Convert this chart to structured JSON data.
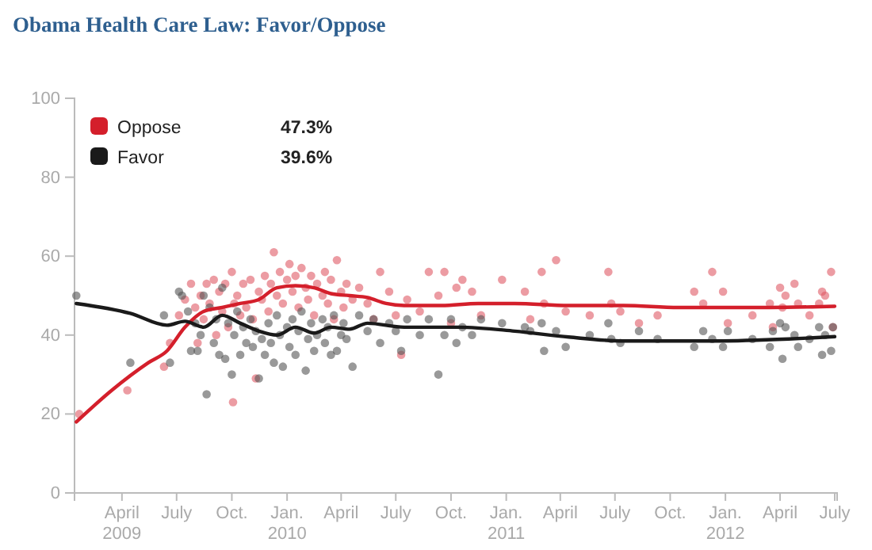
{
  "chart_data": {
    "type": "scatter",
    "marker": "circle",
    "title": "Obama Health Care Law: Favor/Oppose",
    "legend": "top left",
    "grid": false,
    "annotations": [
      "47.3%",
      "39.6%"
    ],
    "xlim": [
      "2009-01-12",
      "2012-07-05"
    ],
    "xticks": [
      {
        "value": "2009-04-01",
        "label": "April\n2009"
      },
      {
        "value": "2009-07-01",
        "label": "July"
      },
      {
        "value": "2009-10-01",
        "label": "Oct."
      },
      {
        "value": "2010-01-01",
        "label": "Jan.\n2010"
      },
      {
        "value": "2010-04-01",
        "label": "April"
      },
      {
        "value": "2010-07-01",
        "label": "July"
      },
      {
        "value": "2010-10-01",
        "label": "Oct."
      },
      {
        "value": "2011-01-01",
        "label": "Jan.\n2011"
      },
      {
        "value": "2011-04-01",
        "label": "April"
      },
      {
        "value": "2011-07-01",
        "label": "July"
      },
      {
        "value": "2011-10-01",
        "label": "Oct."
      },
      {
        "value": "2012-01-01",
        "label": "Jan.\n2012"
      },
      {
        "value": "2012-04-01",
        "label": "April"
      },
      {
        "value": "2012-07-01",
        "label": "July"
      }
    ],
    "ylim": [
      0,
      100
    ],
    "yticks": [
      0,
      20,
      40,
      60,
      80,
      100
    ],
    "series": [
      {
        "color": "#e05a66",
        "x": [
          "2009-01-20",
          "2009-04-10",
          "2009-06-10",
          "2009-06-20",
          "2009-07-05",
          "2009-07-15",
          "2009-07-25",
          "2009-08-01",
          "2009-08-05",
          "2009-08-10",
          "2009-08-15",
          "2009-08-20",
          "2009-08-25",
          "2009-09-01",
          "2009-09-05",
          "2009-09-10",
          "2009-09-15",
          "2009-09-20",
          "2009-09-25",
          "2009-10-01",
          "2009-10-03",
          "2009-10-05",
          "2009-10-10",
          "2009-10-15",
          "2009-10-20",
          "2009-10-25",
          "2009-11-01",
          "2009-11-05",
          "2009-11-10",
          "2009-11-15",
          "2009-11-20",
          "2009-11-25",
          "2009-12-01",
          "2009-12-05",
          "2009-12-10",
          "2009-12-15",
          "2009-12-20",
          "2009-12-25",
          "2010-01-01",
          "2010-01-05",
          "2010-01-10",
          "2010-01-15",
          "2010-01-20",
          "2010-01-25",
          "2010-02-01",
          "2010-02-05",
          "2010-02-10",
          "2010-02-15",
          "2010-02-20",
          "2010-03-01",
          "2010-03-05",
          "2010-03-10",
          "2010-03-15",
          "2010-03-20",
          "2010-03-25",
          "2010-04-01",
          "2010-04-05",
          "2010-04-10",
          "2010-04-20",
          "2010-05-01",
          "2010-05-15",
          "2010-05-25",
          "2010-06-05",
          "2010-06-20",
          "2010-07-01",
          "2010-07-10",
          "2010-07-20",
          "2010-08-10",
          "2010-08-25",
          "2010-09-10",
          "2010-09-20",
          "2010-10-01",
          "2010-10-10",
          "2010-10-20",
          "2010-11-05",
          "2010-11-20",
          "2010-12-25",
          "2011-02-01",
          "2011-02-10",
          "2011-03-01",
          "2011-03-05",
          "2011-03-25",
          "2011-04-10",
          "2011-05-20",
          "2011-06-20",
          "2011-06-25",
          "2011-07-10",
          "2011-08-10",
          "2011-09-10",
          "2011-11-10",
          "2011-11-25",
          "2011-12-10",
          "2011-12-28",
          "2012-01-05",
          "2012-02-15",
          "2012-03-15",
          "2012-03-20",
          "2012-04-01",
          "2012-04-05",
          "2012-04-10",
          "2012-04-25",
          "2012-05-01",
          "2012-05-20",
          "2012-06-05",
          "2012-06-10",
          "2012-06-15",
          "2012-06-25",
          "2012-06-28"
        ],
        "values": [
          20,
          26,
          32,
          38,
          45,
          49,
          53,
          47,
          38,
          50,
          44,
          53,
          48,
          54,
          40,
          51,
          46,
          53,
          42,
          56,
          23,
          48,
          50,
          45,
          53,
          47,
          54,
          44,
          29,
          51,
          49,
          55,
          46,
          53,
          61,
          50,
          56,
          48,
          54,
          58,
          51,
          55,
          47,
          57,
          52,
          49,
          55,
          45,
          53,
          50,
          56,
          48,
          54,
          44,
          59,
          51,
          47,
          53,
          49,
          52,
          48,
          44,
          56,
          51,
          45,
          35,
          49,
          46,
          56,
          50,
          56,
          43,
          52,
          54,
          51,
          45,
          54,
          51,
          44,
          56,
          48,
          59,
          46,
          45,
          56,
          48,
          46,
          43,
          45,
          51,
          48,
          56,
          51,
          43,
          45,
          48,
          42,
          52,
          47,
          50,
          53,
          48,
          45,
          48,
          51,
          50,
          56,
          42
        ]
      },
      {
        "color": "#555555",
        "x": [
          "2009-01-15",
          "2009-04-15",
          "2009-06-10",
          "2009-06-20",
          "2009-07-05",
          "2009-07-10",
          "2009-07-20",
          "2009-07-25",
          "2009-08-01",
          "2009-08-05",
          "2009-08-10",
          "2009-08-15",
          "2009-08-20",
          "2009-08-25",
          "2009-09-01",
          "2009-09-05",
          "2009-09-10",
          "2009-09-15",
          "2009-09-20",
          "2009-09-25",
          "2009-10-01",
          "2009-10-05",
          "2009-10-10",
          "2009-10-15",
          "2009-10-20",
          "2009-10-25",
          "2009-11-01",
          "2009-11-05",
          "2009-11-10",
          "2009-11-15",
          "2009-11-20",
          "2009-11-25",
          "2009-12-01",
          "2009-12-05",
          "2009-12-10",
          "2009-12-15",
          "2009-12-20",
          "2009-12-25",
          "2010-01-01",
          "2010-01-05",
          "2010-01-10",
          "2010-01-15",
          "2010-01-20",
          "2010-01-25",
          "2010-02-01",
          "2010-02-05",
          "2010-02-10",
          "2010-02-15",
          "2010-02-20",
          "2010-03-01",
          "2010-03-05",
          "2010-03-10",
          "2010-03-15",
          "2010-03-20",
          "2010-03-25",
          "2010-04-01",
          "2010-04-05",
          "2010-04-10",
          "2010-04-20",
          "2010-05-01",
          "2010-05-15",
          "2010-05-25",
          "2010-06-05",
          "2010-06-20",
          "2010-07-01",
          "2010-07-10",
          "2010-07-20",
          "2010-08-10",
          "2010-08-25",
          "2010-09-10",
          "2010-09-20",
          "2010-10-01",
          "2010-10-10",
          "2010-10-20",
          "2010-11-05",
          "2010-11-20",
          "2010-12-25",
          "2011-02-01",
          "2011-02-10",
          "2011-03-01",
          "2011-03-05",
          "2011-03-25",
          "2011-04-10",
          "2011-05-20",
          "2011-06-20",
          "2011-06-25",
          "2011-07-10",
          "2011-08-10",
          "2011-09-10",
          "2011-11-10",
          "2011-11-25",
          "2011-12-10",
          "2011-12-28",
          "2012-01-05",
          "2012-02-15",
          "2012-03-15",
          "2012-03-20",
          "2012-04-01",
          "2012-04-05",
          "2012-04-10",
          "2012-04-25",
          "2012-05-01",
          "2012-05-20",
          "2012-06-05",
          "2012-06-10",
          "2012-06-15",
          "2012-06-25",
          "2012-06-28"
        ],
        "values": [
          50,
          33,
          45,
          33,
          51,
          50,
          46,
          36,
          43,
          36,
          40,
          50,
          25,
          47,
          38,
          44,
          35,
          52,
          34,
          43,
          30,
          40,
          46,
          35,
          42,
          38,
          44,
          37,
          41,
          29,
          39,
          35,
          43,
          38,
          33,
          45,
          40,
          32,
          42,
          37,
          44,
          35,
          41,
          46,
          31,
          39,
          43,
          36,
          40,
          44,
          38,
          42,
          35,
          45,
          36,
          40,
          43,
          39,
          32,
          45,
          41,
          44,
          38,
          43,
          41,
          36,
          44,
          40,
          44,
          30,
          40,
          44,
          38,
          42,
          40,
          44,
          43,
          42,
          41,
          43,
          36,
          41,
          37,
          40,
          43,
          39,
          38,
          41,
          39,
          37,
          41,
          39,
          37,
          41,
          39,
          37,
          41,
          43,
          34,
          42,
          40,
          37,
          39,
          42,
          35,
          40,
          36,
          42
        ]
      },
      {
        "type": "line",
        "marker": "none",
        "name": "Oppose",
        "color": "#d41f2b",
        "x": [
          "2009-01-15",
          "2009-03-15",
          "2009-05-15",
          "2009-06-15",
          "2009-07-15",
          "2009-08-15",
          "2009-09-15",
          "2009-10-15",
          "2009-11-15",
          "2009-12-15",
          "2010-01-15",
          "2010-02-15",
          "2010-03-15",
          "2010-04-15",
          "2010-05-15",
          "2010-06-15",
          "2010-07-15",
          "2010-09-15",
          "2010-11-15",
          "2011-01-15",
          "2011-04-15",
          "2011-07-15",
          "2011-10-15",
          "2011-12-15",
          "2012-03-15",
          "2012-07-01"
        ],
        "values": [
          18,
          26,
          33,
          36,
          42,
          46,
          47,
          48,
          49,
          52,
          52.5,
          52,
          50.5,
          50,
          49.5,
          48,
          47.5,
          47.5,
          48,
          48,
          47.5,
          47.5,
          47,
          47,
          47,
          47.3
        ]
      },
      {
        "type": "line",
        "marker": "none",
        "name": "Favor",
        "color": "#1a1a1a",
        "x": [
          "2009-01-15",
          "2009-04-15",
          "2009-06-15",
          "2009-07-15",
          "2009-08-15",
          "2009-09-15",
          "2009-10-15",
          "2009-11-15",
          "2009-12-15",
          "2010-01-15",
          "2010-02-15",
          "2010-03-15",
          "2010-04-15",
          "2010-05-15",
          "2010-07-15",
          "2010-10-15",
          "2011-01-15",
          "2011-04-15",
          "2011-07-15",
          "2011-10-15",
          "2011-12-15",
          "2012-04-15",
          "2012-07-01"
        ],
        "values": [
          48,
          45.5,
          42.5,
          43.5,
          42,
          45,
          43,
          41,
          40,
          42,
          40.5,
          42,
          41.5,
          43,
          42,
          42,
          41,
          39.5,
          38.5,
          38.5,
          38.5,
          39,
          39.6
        ]
      }
    ]
  }
}
